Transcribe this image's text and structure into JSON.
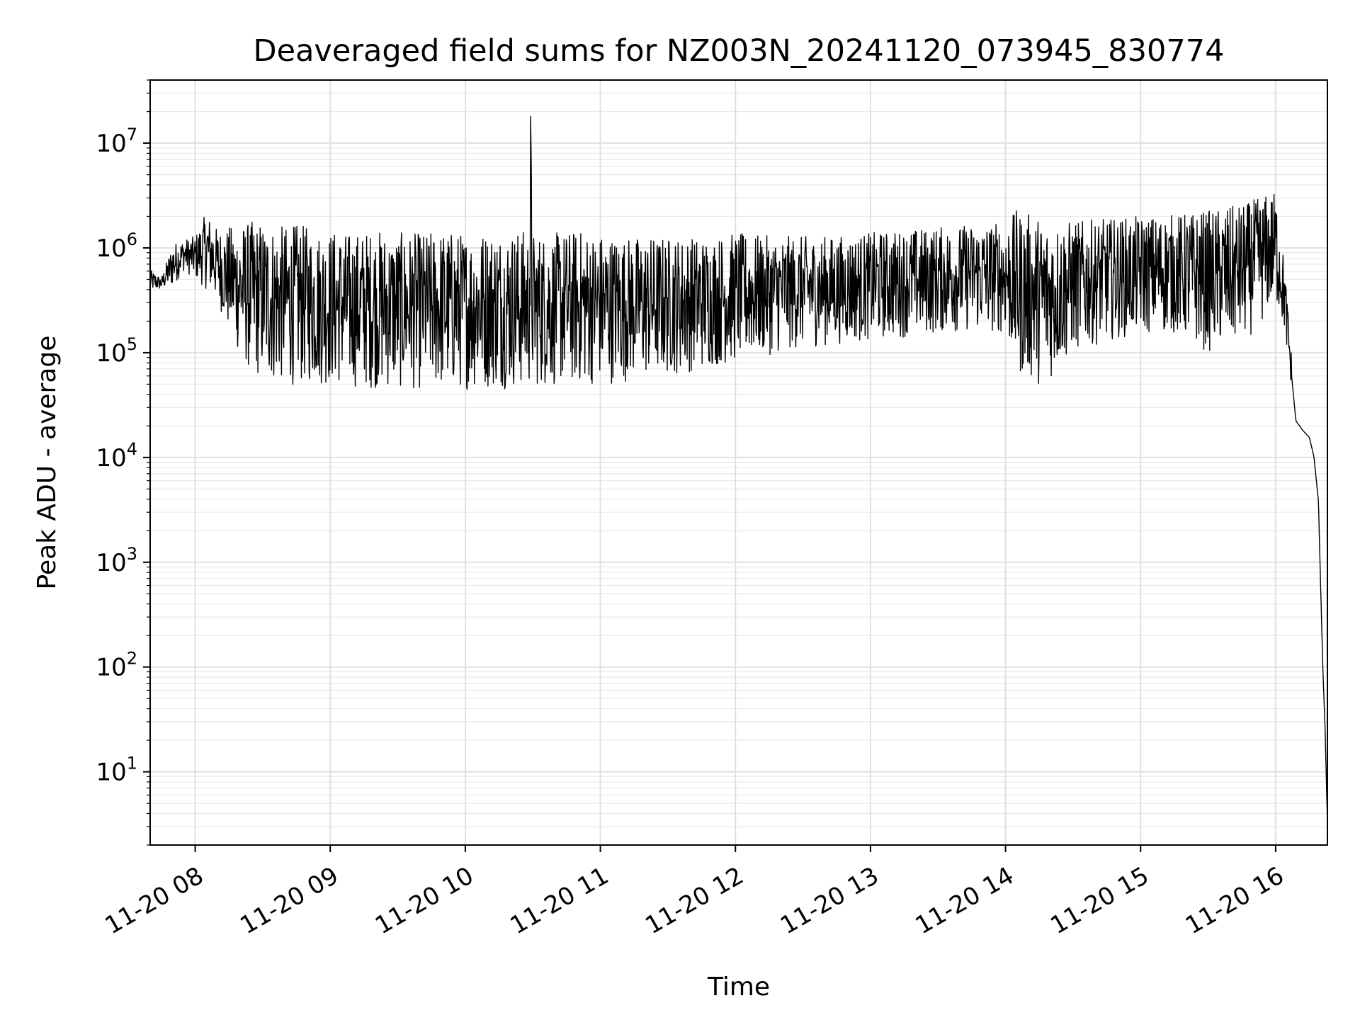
{
  "chart_data": {
    "type": "line",
    "title": "Deaveraged field sums for NZ003N_20241120_073945_830774",
    "xlabel": "Time",
    "ylabel": "Peak ADU - average",
    "yscale": "log",
    "xlim": [
      "2024-11-20 07:40",
      "2024-11-20 16:23"
    ],
    "ylim": [
      2,
      40000000
    ],
    "grid": true,
    "legend": false,
    "line_color": "#000000",
    "x_ticks": [
      "11-20 08",
      "11-20 09",
      "11-20 10",
      "11-20 11",
      "11-20 12",
      "11-20 13",
      "11-20 14",
      "11-20 15",
      "11-20 16"
    ],
    "y_ticks": [
      {
        "value": 10,
        "base": "10",
        "exp": "1"
      },
      {
        "value": 100,
        "base": "10",
        "exp": "2"
      },
      {
        "value": 1000,
        "base": "10",
        "exp": "3"
      },
      {
        "value": 10000,
        "base": "10",
        "exp": "4"
      },
      {
        "value": 100000,
        "base": "10",
        "exp": "5"
      },
      {
        "value": 1000000,
        "base": "10",
        "exp": "6"
      },
      {
        "value": 10000000,
        "base": "10",
        "exp": "7"
      }
    ],
    "series": [
      {
        "x": [
          "2024-11-20 07:40",
          "2024-11-20 07:45",
          "2024-11-20 07:50",
          "2024-11-20 07:55",
          "2024-11-20 08:00",
          "2024-11-20 08:05",
          "2024-11-20 08:10",
          "2024-11-20 08:15",
          "2024-11-20 08:20",
          "2024-11-20 08:25",
          "2024-11-20 08:30",
          "2024-11-20 08:35",
          "2024-11-20 08:40",
          "2024-11-20 08:45",
          "2024-11-20 08:50",
          "2024-11-20 08:55",
          "2024-11-20 09:00",
          "2024-11-20 09:10",
          "2024-11-20 09:20",
          "2024-11-20 09:30",
          "2024-11-20 09:40",
          "2024-11-20 09:50",
          "2024-11-20 10:00",
          "2024-11-20 10:10",
          "2024-11-20 10:20",
          "2024-11-20 10:28",
          "2024-11-20 10:29",
          "2024-11-20 10:30",
          "2024-11-20 10:40",
          "2024-11-20 10:50",
          "2024-11-20 11:00",
          "2024-11-20 11:10",
          "2024-11-20 11:20",
          "2024-11-20 11:30",
          "2024-11-20 11:40",
          "2024-11-20 11:50",
          "2024-11-20 12:00",
          "2024-11-20 12:15",
          "2024-11-20 12:30",
          "2024-11-20 12:45",
          "2024-11-20 13:00",
          "2024-11-20 13:15",
          "2024-11-20 13:30",
          "2024-11-20 13:45",
          "2024-11-20 14:00",
          "2024-11-20 14:05",
          "2024-11-20 14:15",
          "2024-11-20 14:20",
          "2024-11-20 14:30",
          "2024-11-20 14:45",
          "2024-11-20 15:00",
          "2024-11-20 15:15",
          "2024-11-20 15:30",
          "2024-11-20 15:45",
          "2024-11-20 15:55",
          "2024-11-20 16:00",
          "2024-11-20 16:04",
          "2024-11-20 16:07",
          "2024-11-20 16:09",
          "2024-11-20 16:12",
          "2024-11-20 16:15",
          "2024-11-20 16:17",
          "2024-11-20 16:19",
          "2024-11-20 16:20",
          "2024-11-20 16:21",
          "2024-11-20 16:22",
          "2024-11-20 16:23"
        ],
        "low": [
          380000,
          400000,
          420000,
          600000,
          500000,
          400000,
          300000,
          150000,
          90000,
          60000,
          55000,
          50000,
          50000,
          48000,
          50000,
          48000,
          48000,
          46000,
          45000,
          44000,
          44000,
          43000,
          44000,
          45000,
          45000,
          44000,
          44000,
          46000,
          47000,
          48000,
          49000,
          52000,
          56000,
          60000,
          65000,
          72000,
          80000,
          95000,
          110000,
          120000,
          130000,
          140000,
          150000,
          160000,
          150000,
          60000,
          50000,
          55000,
          100000,
          130000,
          150000,
          150000,
          100000,
          120000,
          200000,
          300000,
          150000,
          40000,
          20000,
          15000,
          12000,
          8000,
          3000,
          400,
          60,
          15,
          2
        ],
        "high": [
          620000,
          520000,
          1100000,
          1200000,
          1300000,
          2200000,
          1500000,
          1600000,
          1700000,
          1800000,
          1800000,
          1700000,
          1600000,
          1700000,
          1600000,
          1500000,
          1500000,
          1400000,
          1500000,
          1400000,
          1400000,
          1500000,
          1400000,
          1500000,
          1500000,
          1500000,
          18000000,
          1400000,
          1400000,
          1500000,
          1400000,
          1300000,
          1300000,
          1300000,
          1300000,
          1300000,
          1400000,
          1300000,
          1300000,
          1300000,
          1400000,
          1500000,
          1600000,
          1700000,
          1800000,
          2300000,
          2000000,
          1800000,
          1800000,
          1900000,
          2000000,
          2100000,
          2300000,
          2600000,
          3200000,
          3500000,
          700000,
          100000,
          25000,
          22000,
          20000,
          13000,
          5000,
          800,
          150,
          40,
          5
        ]
      }
    ]
  }
}
